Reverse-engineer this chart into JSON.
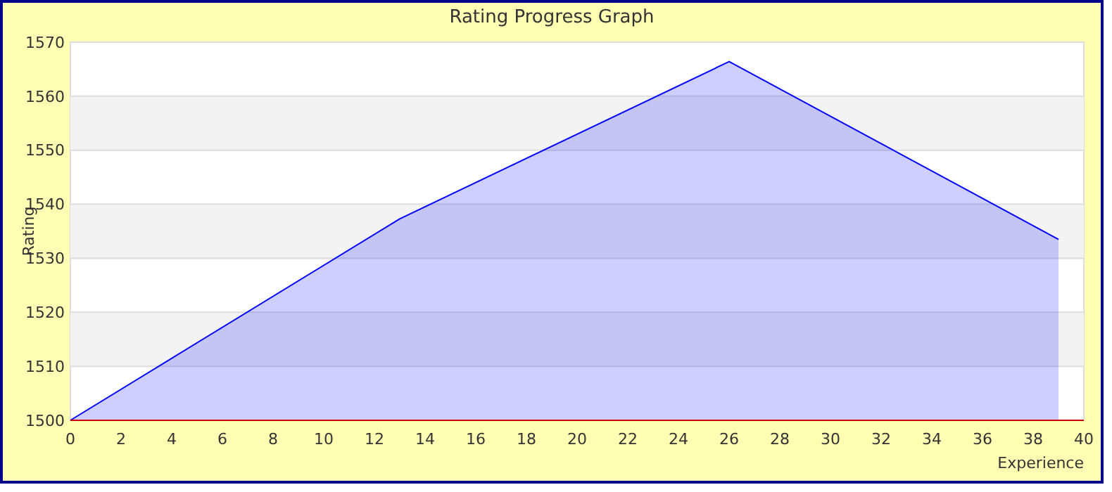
{
  "chart_data": {
    "type": "area",
    "title": "Rating Progress Graph",
    "xlabel": "Experience",
    "ylabel": "Rating",
    "x": [
      0,
      13,
      26,
      39
    ],
    "series": [
      {
        "color": "#0000ff",
        "values": [
          1500,
          1537.3,
          1566.4,
          1533.5
        ]
      }
    ],
    "xlim": [
      0,
      40
    ],
    "xticks": [
      0,
      2,
      4,
      6,
      8,
      10,
      12,
      14,
      16,
      18,
      20,
      22,
      24,
      26,
      28,
      30,
      32,
      34,
      36,
      38,
      40
    ],
    "ylim": [
      1500,
      1570
    ],
    "yticks": [
      1500,
      1510,
      1520,
      1530,
      1540,
      1550,
      1560,
      1570
    ],
    "grid": "y"
  }
}
